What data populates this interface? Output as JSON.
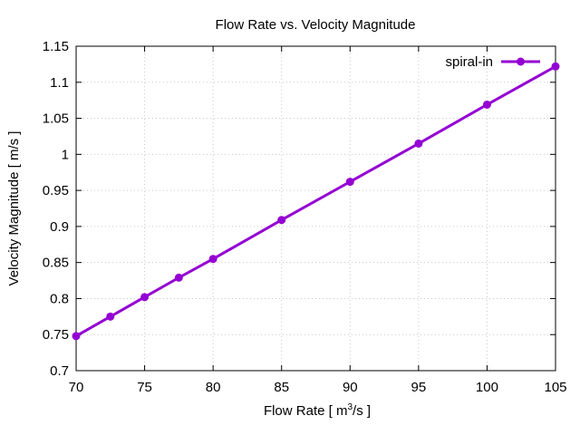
{
  "chart_data": {
    "type": "line",
    "title": "Flow Rate vs. Velocity Magnitude",
    "xlabel_main": "Flow Rate [ m",
    "xlabel_sup": "3",
    "xlabel_tail": "/s ]",
    "ylabel": "Velocity Magnitude [ m/s ]",
    "xlim": [
      70,
      105
    ],
    "ylim": [
      0.7,
      1.15
    ],
    "x_ticks": [
      "70",
      "75",
      "80",
      "85",
      "90",
      "95",
      "100",
      "105"
    ],
    "y_ticks": [
      "0.7",
      "0.75",
      "0.8",
      "0.85",
      "0.9",
      "0.95",
      "1",
      "1.05",
      "1.1",
      "1.15"
    ],
    "grid": true,
    "legend_position": "top-right",
    "series": [
      {
        "name": "spiral-in",
        "color": "#9400d3",
        "marker": "circle",
        "x": [
          70,
          72.5,
          75,
          77.5,
          80,
          85,
          90,
          95,
          100,
          105
        ],
        "y": [
          0.748,
          0.775,
          0.802,
          0.829,
          0.855,
          0.909,
          0.962,
          1.015,
          1.069,
          1.122
        ]
      }
    ]
  }
}
